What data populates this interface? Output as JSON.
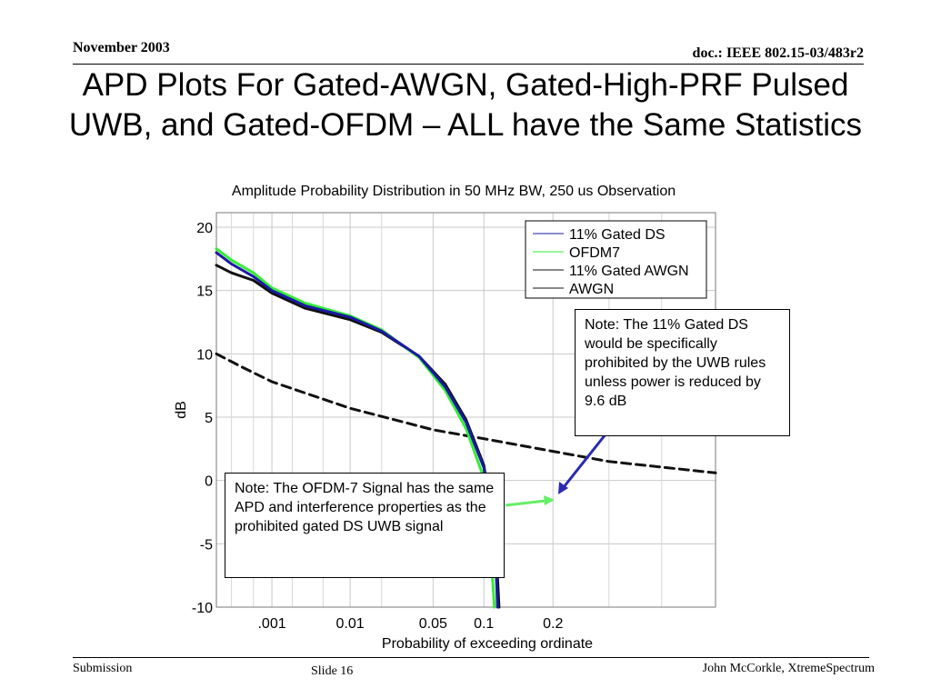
{
  "header": {
    "date": "November 2003",
    "doc_id": "doc.: IEEE 802.15-03/483r2"
  },
  "slide_title": "APD Plots For Gated-AWGN, Gated-High-PRF Pulsed UWB, and Gated-OFDM – ALL have the Same Statistics",
  "footer": {
    "left": "Submission",
    "center": "Slide 16",
    "right": "John McCorkle, XtremeSpectrum"
  },
  "notes": {
    "gated_ds": "Note: The 11% Gated DS would be specifically prohibited by the UWB rules unless power is reduced by 9.6 dB",
    "ofdm": "Note: The OFDM-7 Signal has the same APD and interference properties as the prohibited gated DS UWB signal"
  },
  "chart_data": {
    "type": "line",
    "title": "Amplitude Probability Distribution in 50 MHz BW, 250 us Observation",
    "xlabel": "Probability of exceeding ordinate",
    "ylabel": "dB",
    "ylim": [
      -10,
      21
    ],
    "yticks": [
      20,
      15,
      10,
      5,
      0,
      -5,
      -10
    ],
    "xscale": "rayleigh-probability",
    "xlim": [
      0.0001,
      0.5
    ],
    "xticks": [
      {
        "value": 0.001,
        "label": ".001"
      },
      {
        "value": 0.01,
        "label": "0.01"
      },
      {
        "value": 0.05,
        "label": "0.05"
      },
      {
        "value": 0.1,
        "label": "0.1"
      },
      {
        "value": 0.2,
        "label": "0.2"
      }
    ],
    "grid": true,
    "legend_position": "top-right",
    "series": [
      {
        "name": "11% Gated DS",
        "color": "#1a1aa6",
        "points": [
          [
            0.0001,
            18.0
          ],
          [
            0.0002,
            17.1
          ],
          [
            0.0005,
            16.1
          ],
          [
            0.001,
            15.0
          ],
          [
            0.003,
            13.8
          ],
          [
            0.01,
            12.9
          ],
          [
            0.02,
            11.8
          ],
          [
            0.04,
            9.8
          ],
          [
            0.06,
            7.4
          ],
          [
            0.08,
            4.6
          ],
          [
            0.1,
            1.0
          ],
          [
            0.11,
            -3.2
          ],
          [
            0.115,
            -6.8
          ],
          [
            0.117,
            -10.0
          ]
        ]
      },
      {
        "name": "OFDM7",
        "color": "#33ee33",
        "points": [
          [
            0.0001,
            18.3
          ],
          [
            0.0002,
            17.4
          ],
          [
            0.0005,
            16.4
          ],
          [
            0.001,
            15.2
          ],
          [
            0.003,
            14.0
          ],
          [
            0.01,
            13.0
          ],
          [
            0.02,
            11.9
          ],
          [
            0.04,
            9.7
          ],
          [
            0.06,
            7.1
          ],
          [
            0.08,
            4.1
          ],
          [
            0.1,
            0.2
          ],
          [
            0.105,
            -3.8
          ],
          [
            0.11,
            -7.2
          ],
          [
            0.113,
            -10.0
          ]
        ]
      },
      {
        "name": "11% Gated AWGN",
        "color": "#111111",
        "points": [
          [
            0.0001,
            17.0
          ],
          [
            0.0002,
            16.4
          ],
          [
            0.0005,
            15.8
          ],
          [
            0.001,
            14.8
          ],
          [
            0.003,
            13.6
          ],
          [
            0.01,
            12.7
          ],
          [
            0.02,
            11.7
          ],
          [
            0.04,
            9.8
          ],
          [
            0.06,
            7.6
          ],
          [
            0.08,
            4.8
          ],
          [
            0.1,
            1.2
          ],
          [
            0.11,
            -3.0
          ],
          [
            0.116,
            -6.5
          ],
          [
            0.119,
            -10.0
          ]
        ]
      },
      {
        "name": "AWGN",
        "color": "#111111",
        "dashed": true,
        "points": [
          [
            0.0001,
            10.0
          ],
          [
            0.0003,
            9.0
          ],
          [
            0.001,
            7.8
          ],
          [
            0.003,
            6.9
          ],
          [
            0.01,
            5.7
          ],
          [
            0.05,
            4.0
          ],
          [
            0.1,
            3.3
          ],
          [
            0.2,
            2.3
          ],
          [
            0.3,
            1.5
          ],
          [
            0.5,
            0.6
          ]
        ]
      }
    ]
  }
}
